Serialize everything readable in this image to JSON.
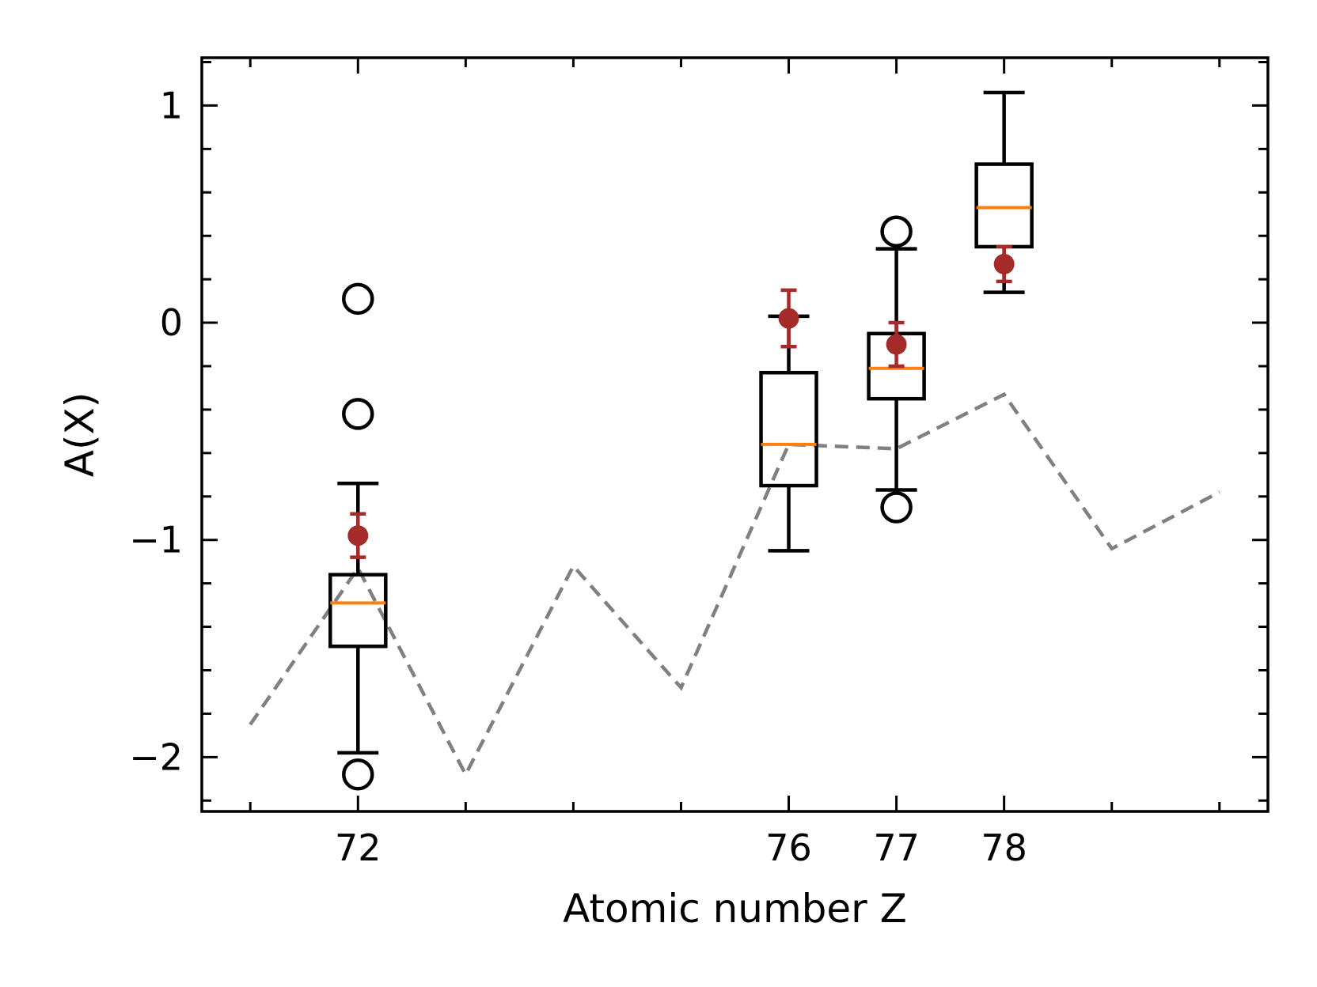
{
  "chart_data": {
    "type": "box",
    "xlabel": "Atomic number Z",
    "ylabel": "A(X)",
    "xlim": [
      70.55,
      80.45
    ],
    "ylim": [
      -2.25,
      1.22
    ],
    "x_minor_ticks": [
      71,
      72,
      73,
      74,
      75,
      76,
      77,
      78,
      79,
      80
    ],
    "x_tick_labels": [
      {
        "value": 72,
        "label": "72"
      },
      {
        "value": 76,
        "label": "76"
      },
      {
        "value": 77,
        "label": "77"
      },
      {
        "value": 78,
        "label": "78"
      }
    ],
    "y_tick_labels": [
      {
        "value": -2,
        "label": "−2"
      },
      {
        "value": -1,
        "label": "−1"
      },
      {
        "value": 0,
        "label": "0"
      },
      {
        "value": 1,
        "label": "1"
      }
    ],
    "y_minor_step": 0.2,
    "boxes": [
      {
        "x": 72,
        "whisker_low": -1.98,
        "q1": -1.49,
        "median": -1.29,
        "q3": -1.16,
        "whisker_high": -0.74,
        "outliers": [
          -2.08,
          -0.42,
          0.11
        ]
      },
      {
        "x": 76,
        "whisker_low": -1.05,
        "q1": -0.75,
        "median": -0.56,
        "q3": -0.23,
        "whisker_high": 0.03,
        "outliers": []
      },
      {
        "x": 77,
        "whisker_low": -0.77,
        "q1": -0.35,
        "median": -0.21,
        "q3": -0.05,
        "whisker_high": 0.34,
        "outliers": [
          -0.85,
          0.42
        ]
      },
      {
        "x": 78,
        "whisker_low": 0.14,
        "q1": 0.35,
        "median": 0.53,
        "q3": 0.73,
        "whisker_high": 1.06,
        "outliers": []
      }
    ],
    "points": [
      {
        "x": 72,
        "y": -0.98,
        "err_low": 0.1,
        "err_high": 0.1
      },
      {
        "x": 76,
        "y": 0.02,
        "err_low": 0.13,
        "err_high": 0.13
      },
      {
        "x": 77,
        "y": -0.1,
        "err_low": 0.1,
        "err_high": 0.1
      },
      {
        "x": 78,
        "y": 0.27,
        "err_low": 0.08,
        "err_high": 0.08
      }
    ],
    "dashed_line": {
      "x": [
        71,
        72,
        73,
        74,
        75,
        76,
        77,
        78,
        79,
        80
      ],
      "y": [
        -1.85,
        -1.13,
        -2.08,
        -1.12,
        -1.68,
        -0.56,
        -0.58,
        -0.33,
        -1.04,
        -0.78
      ]
    },
    "colors": {
      "box": "#000000",
      "median": "#ff7f0e",
      "points": "#a52a2a",
      "dashed_line": "#808080"
    },
    "grid": false,
    "legend": "none"
  }
}
